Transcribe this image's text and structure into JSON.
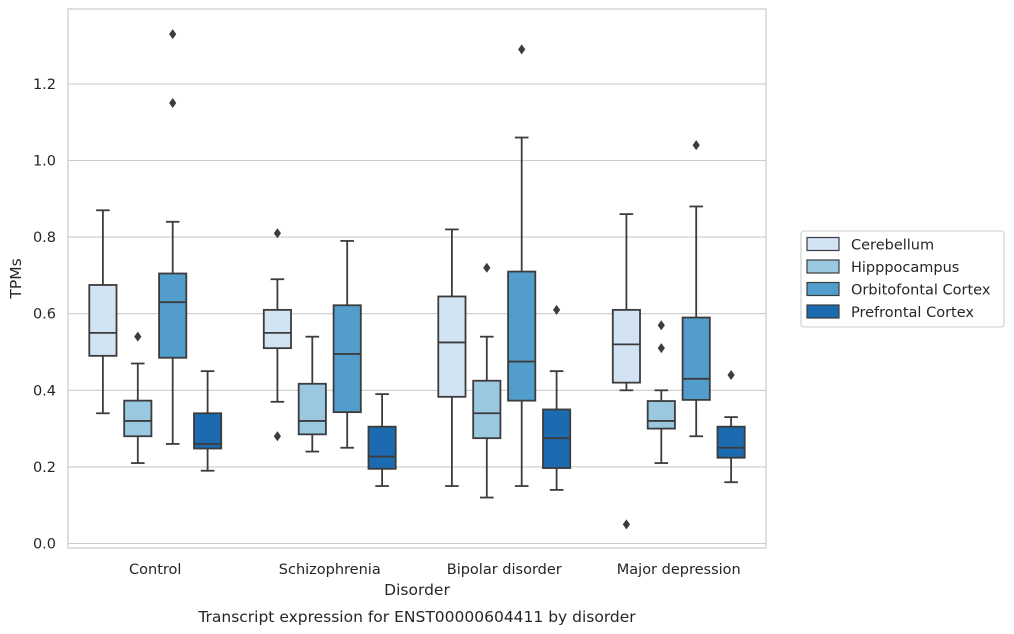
{
  "chart_data": {
    "type": "box",
    "xlabel": "Disorder",
    "ylabel": "TPMs",
    "caption": "Transcript expression for ENST00000604411 by disorder",
    "ylim": [
      -0.01,
      1.395
    ],
    "yticks": [
      0.0,
      0.2,
      0.4,
      0.6,
      0.8,
      1.0,
      1.2
    ],
    "ytick_labels": [
      "0.0",
      "0.2",
      "0.4",
      "0.6",
      "0.8",
      "1.0",
      "1.2"
    ],
    "grid": "horizontal",
    "legend_position": "right",
    "categories": [
      "Control",
      "Schizophrenia",
      "Bipolar disorder",
      "Major depression"
    ],
    "series": [
      {
        "name": "Cerebellum",
        "color": "#d2e3f3",
        "boxes": [
          {
            "whislo": 0.34,
            "q1": 0.49,
            "med": 0.55,
            "q3": 0.675,
            "whishi": 0.87,
            "fliers": []
          },
          {
            "whislo": 0.37,
            "q1": 0.51,
            "med": 0.55,
            "q3": 0.61,
            "whishi": 0.69,
            "fliers": [
              0.81,
              0.28
            ]
          },
          {
            "whislo": 0.15,
            "q1": 0.383,
            "med": 0.525,
            "q3": 0.645,
            "whishi": 0.82,
            "fliers": []
          },
          {
            "whislo": 0.4,
            "q1": 0.42,
            "med": 0.52,
            "q3": 0.61,
            "whishi": 0.86,
            "fliers": [
              0.05
            ]
          }
        ]
      },
      {
        "name": "Hipppocampus",
        "color": "#9ac8e0",
        "boxes": [
          {
            "whislo": 0.21,
            "q1": 0.28,
            "med": 0.32,
            "q3": 0.373,
            "whishi": 0.47,
            "fliers": [
              0.54
            ]
          },
          {
            "whislo": 0.24,
            "q1": 0.285,
            "med": 0.32,
            "q3": 0.417,
            "whishi": 0.54,
            "fliers": []
          },
          {
            "whislo": 0.12,
            "q1": 0.275,
            "med": 0.34,
            "q3": 0.425,
            "whishi": 0.54,
            "fliers": [
              0.72
            ]
          },
          {
            "whislo": 0.21,
            "q1": 0.3,
            "med": 0.32,
            "q3": 0.372,
            "whishi": 0.4,
            "fliers": [
              0.57,
              0.51
            ]
          }
        ]
      },
      {
        "name": "Orbitofontal Cortex",
        "color": "#529dcc",
        "boxes": [
          {
            "whislo": 0.26,
            "q1": 0.485,
            "med": 0.63,
            "q3": 0.705,
            "whishi": 0.84,
            "fliers": [
              1.33,
              1.15
            ]
          },
          {
            "whislo": 0.25,
            "q1": 0.343,
            "med": 0.495,
            "q3": 0.622,
            "whishi": 0.79,
            "fliers": []
          },
          {
            "whislo": 0.15,
            "q1": 0.373,
            "med": 0.475,
            "q3": 0.71,
            "whishi": 1.06,
            "fliers": [
              1.29
            ]
          },
          {
            "whislo": 0.28,
            "q1": 0.375,
            "med": 0.43,
            "q3": 0.59,
            "whishi": 0.88,
            "fliers": [
              1.04
            ]
          }
        ]
      },
      {
        "name": "Prefrontal Cortex",
        "color": "#1c6aaf",
        "boxes": [
          {
            "whislo": 0.19,
            "q1": 0.248,
            "med": 0.26,
            "q3": 0.34,
            "whishi": 0.45,
            "fliers": []
          },
          {
            "whislo": 0.15,
            "q1": 0.195,
            "med": 0.227,
            "q3": 0.305,
            "whishi": 0.39,
            "fliers": []
          },
          {
            "whislo": 0.14,
            "q1": 0.197,
            "med": 0.275,
            "q3": 0.35,
            "whishi": 0.45,
            "fliers": [
              0.61
            ]
          },
          {
            "whislo": 0.16,
            "q1": 0.224,
            "med": 0.25,
            "q3": 0.305,
            "whishi": 0.33,
            "fliers": [
              0.44
            ]
          }
        ]
      }
    ]
  }
}
